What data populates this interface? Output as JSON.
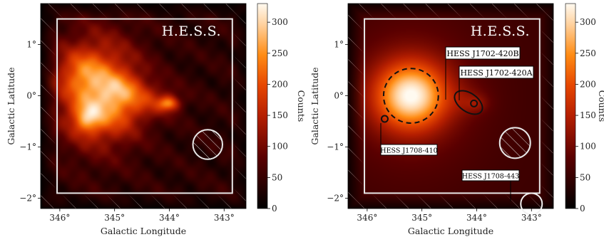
{
  "chart_data": [
    {
      "type": "heatmap",
      "panel": "left",
      "kind": "observed_counts_map",
      "watermark": "H.E.S.S.",
      "xlabel": "Galactic Longitude",
      "ylabel": "Galactic Latitude",
      "x_unit": "deg",
      "y_unit": "deg",
      "xlim": [
        346.35,
        342.6
      ],
      "ylim": [
        -2.2,
        1.8
      ],
      "x_inverted": true,
      "xticks": [
        346,
        345,
        344,
        343
      ],
      "xtick_labels": [
        "346°",
        "345°",
        "344°",
        "343°"
      ],
      "yticks": [
        1,
        0,
        -1,
        -2
      ],
      "ytick_labels": [
        "1°",
        "0°",
        "−1°",
        "−2°"
      ],
      "colorbar": {
        "label": "Counts",
        "min": 0,
        "max": 330,
        "ticks": [
          0,
          50,
          100,
          150,
          200,
          250,
          300
        ],
        "colormap": "gist_heat"
      },
      "blobs": [
        {
          "l": 345.3,
          "b": 0.1,
          "sl": 0.55,
          "sb": 0.75,
          "amp": 175
        },
        {
          "l": 345.6,
          "b": 0.45,
          "sl": 0.3,
          "sb": 0.3,
          "amp": 70
        },
        {
          "l": 345.0,
          "b": -0.2,
          "sl": 0.38,
          "sb": 0.38,
          "amp": 70
        },
        {
          "l": 345.5,
          "b": -0.45,
          "sl": 0.18,
          "sb": 0.2,
          "amp": 115
        },
        {
          "l": 344.85,
          "b": 0.15,
          "sl": 0.28,
          "sb": 0.22,
          "amp": 55
        },
        {
          "l": 344.0,
          "b": -0.15,
          "sl": 0.13,
          "sb": 0.1,
          "amp": 145
        },
        {
          "l": 344.25,
          "b": -0.1,
          "sl": 0.32,
          "sb": 0.22,
          "amp": 70
        }
      ],
      "background_level": 40,
      "analysis_box": {
        "l_range": [
          346.05,
          342.85
        ],
        "b_range": [
          1.5,
          -1.9
        ]
      },
      "exclusion_region": {
        "l": 343.3,
        "b": -0.95,
        "r": 0.27
      }
    },
    {
      "type": "heatmap",
      "panel": "right",
      "kind": "model_counts_map",
      "watermark": "H.E.S.S.",
      "xlabel": "Galactic Longitude",
      "ylabel": "Galactic Latitude",
      "x_unit": "deg",
      "y_unit": "deg",
      "xlim": [
        346.35,
        342.6
      ],
      "ylim": [
        -2.2,
        1.8
      ],
      "x_inverted": true,
      "xticks": [
        346,
        345,
        344,
        343
      ],
      "xtick_labels": [
        "346°",
        "345°",
        "344°",
        "343°"
      ],
      "yticks": [
        1,
        0,
        -1,
        -2
      ],
      "ytick_labels": [
        "1°",
        "0°",
        "−1°",
        "−2°"
      ],
      "colorbar": {
        "label": "Counts",
        "min": 0,
        "max": 330,
        "ticks": [
          0,
          50,
          100,
          150,
          200,
          250,
          300
        ],
        "colormap": "gist_heat"
      },
      "blobs": [
        {
          "l": 345.2,
          "b": 0.0,
          "sl": 0.45,
          "sb": 0.45,
          "amp": 230
        },
        {
          "l": 345.2,
          "b": 0.0,
          "sl": 0.95,
          "sb": 1.1,
          "amp": 50
        },
        {
          "l": 344.0,
          "b": -0.15,
          "sl": 0.14,
          "sb": 0.11,
          "amp": 30
        },
        {
          "l": 344.15,
          "b": -0.1,
          "sl": 0.28,
          "sb": 0.2,
          "amp": 25
        }
      ],
      "background_level": 55,
      "analysis_box": {
        "l_range": [
          346.05,
          342.85
        ],
        "b_range": [
          1.5,
          -1.9
        ]
      },
      "exclusion_region": {
        "l": 343.3,
        "b": -0.92,
        "r": 0.28
      },
      "sources": [
        {
          "name": "HESS J1702-420A",
          "l": 344.05,
          "b": -0.15,
          "marker": "small_circle"
        },
        {
          "name": "HESS J1702-420B",
          "l": 344.15,
          "b": -0.13,
          "marker": "ellipse"
        },
        {
          "name": "HESS J1708-410",
          "l": 345.68,
          "b": -0.45,
          "marker": "small_circle"
        },
        {
          "name": "HESS J1708-443",
          "l": 343.0,
          "b": -2.22,
          "marker": "circle"
        }
      ],
      "extended_component": {
        "l": 345.2,
        "b": 0.0,
        "r": 0.5,
        "style": "dashed"
      }
    }
  ]
}
